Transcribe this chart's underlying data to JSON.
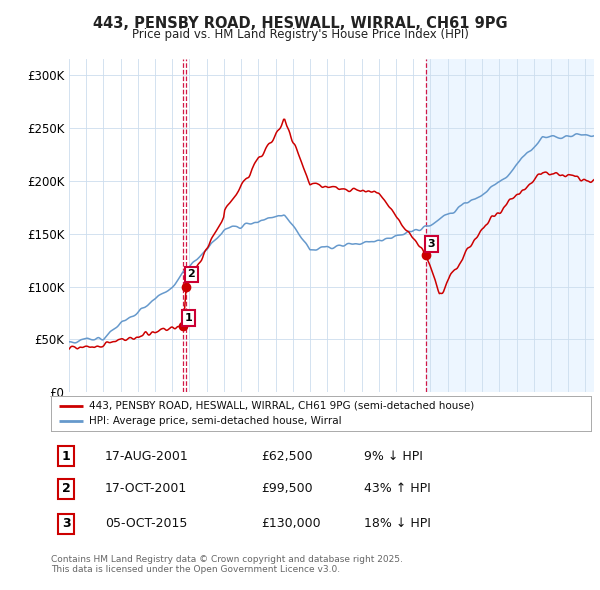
{
  "title": "443, PENSBY ROAD, HESWALL, WIRRAL, CH61 9PG",
  "subtitle": "Price paid vs. HM Land Registry's House Price Index (HPI)",
  "ylabel_ticks": [
    "£0",
    "£50K",
    "£100K",
    "£150K",
    "£200K",
    "£250K",
    "£300K"
  ],
  "ytick_vals": [
    0,
    50000,
    100000,
    150000,
    200000,
    250000,
    300000
  ],
  "ylim": [
    0,
    315000
  ],
  "xlim_start": 1995.0,
  "xlim_end": 2025.5,
  "legend_line1": "443, PENSBY ROAD, HESWALL, WIRRAL, CH61 9PG (semi-detached house)",
  "legend_line2": "HPI: Average price, semi-detached house, Wirral",
  "transactions": [
    {
      "num": 1,
      "date_label": "17-AUG-2001",
      "price": "£62,500",
      "hpi": "9% ↓ HPI",
      "year": 2001.63,
      "value": 62500
    },
    {
      "num": 2,
      "date_label": "17-OCT-2001",
      "price": "£99,500",
      "hpi": "43% ↑ HPI",
      "year": 2001.8,
      "value": 99500
    },
    {
      "num": 3,
      "date_label": "05-OCT-2015",
      "price": "£130,000",
      "hpi": "18% ↓ HPI",
      "year": 2015.76,
      "value": 130000
    }
  ],
  "footer1": "Contains HM Land Registry data © Crown copyright and database right 2025.",
  "footer2": "This data is licensed under the Open Government Licence v3.0.",
  "red_color": "#cc0000",
  "blue_color": "#6699cc",
  "vline_color": "#cc0033",
  "bg_color": "#ffffff",
  "bg_highlight": "#ddeeff",
  "grid_color": "#ccddee"
}
